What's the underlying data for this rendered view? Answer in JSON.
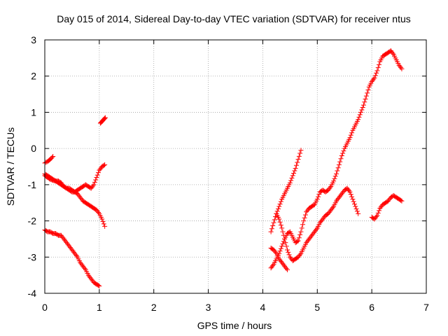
{
  "chart_data": {
    "type": "scatter",
    "title": "Day 015 of 2014, Sidereal Day-to-day VTEC variation (SDTVAR) for receiver ntus",
    "xlabel": "GPS time / hours",
    "ylabel": "SDTVAR / TECUs",
    "xlim": [
      0,
      7
    ],
    "ylim": [
      -4,
      3
    ],
    "xticks": [
      0,
      1,
      2,
      3,
      4,
      5,
      6,
      7
    ],
    "yticks": [
      -4,
      -3,
      -2,
      -1,
      0,
      1,
      2,
      3
    ],
    "xtick_labels": [
      "0",
      "1",
      "2",
      "3",
      "4",
      "5",
      "6",
      "7"
    ],
    "ytick_labels": [
      "-4",
      "-3",
      "-2",
      "-1",
      "0",
      "1",
      "2",
      "3"
    ],
    "grid": true,
    "marker": "+",
    "color": "#ff0000",
    "series": [
      {
        "name": "arc-1",
        "points": [
          [
            0.0,
            -0.4
          ],
          [
            0.06,
            -0.35
          ],
          [
            0.1,
            -0.3
          ],
          [
            0.15,
            -0.22
          ]
        ]
      },
      {
        "name": "arc-2",
        "points": [
          [
            0.0,
            -0.75
          ],
          [
            0.05,
            -0.8
          ],
          [
            0.1,
            -0.85
          ],
          [
            0.15,
            -0.88
          ],
          [
            0.2,
            -0.9
          ],
          [
            0.25,
            -0.95
          ],
          [
            0.3,
            -1.0
          ],
          [
            0.35,
            -1.05
          ],
          [
            0.4,
            -1.1
          ],
          [
            0.45,
            -1.15
          ],
          [
            0.5,
            -1.2
          ],
          [
            0.55,
            -1.2
          ],
          [
            0.6,
            -1.15
          ],
          [
            0.65,
            -1.1
          ],
          [
            0.7,
            -1.05
          ],
          [
            0.75,
            -1.0
          ],
          [
            0.8,
            -1.05
          ],
          [
            0.85,
            -1.1
          ],
          [
            0.9,
            -1.0
          ],
          [
            0.95,
            -0.8
          ],
          [
            1.0,
            -0.6
          ],
          [
            1.05,
            -0.5
          ],
          [
            1.1,
            -0.45
          ]
        ]
      },
      {
        "name": "arc-3",
        "points": [
          [
            0.0,
            -0.7
          ],
          [
            0.05,
            -0.75
          ],
          [
            0.1,
            -0.8
          ],
          [
            0.15,
            -0.85
          ],
          [
            0.2,
            -0.9
          ],
          [
            0.25,
            -0.9
          ],
          [
            0.3,
            -0.95
          ],
          [
            0.35,
            -1.05
          ],
          [
            0.4,
            -1.1
          ],
          [
            0.45,
            -1.1
          ],
          [
            0.5,
            -1.15
          ],
          [
            0.55,
            -1.2
          ],
          [
            0.6,
            -1.25
          ],
          [
            0.65,
            -1.35
          ],
          [
            0.7,
            -1.45
          ],
          [
            0.75,
            -1.5
          ],
          [
            0.8,
            -1.55
          ],
          [
            0.85,
            -1.6
          ],
          [
            0.9,
            -1.65
          ],
          [
            0.95,
            -1.7
          ],
          [
            1.0,
            -1.8
          ],
          [
            1.05,
            -1.95
          ],
          [
            1.1,
            -2.15
          ]
        ]
      },
      {
        "name": "arc-4",
        "points": [
          [
            1.02,
            0.7
          ],
          [
            1.05,
            0.75
          ],
          [
            1.08,
            0.8
          ],
          [
            1.11,
            0.85
          ]
        ]
      },
      {
        "name": "arc-5",
        "points": [
          [
            0.0,
            -2.25
          ],
          [
            0.05,
            -2.3
          ],
          [
            0.1,
            -2.3
          ],
          [
            0.15,
            -2.35
          ],
          [
            0.2,
            -2.35
          ],
          [
            0.25,
            -2.4
          ],
          [
            0.3,
            -2.4
          ],
          [
            0.35,
            -2.5
          ],
          [
            0.4,
            -2.6
          ],
          [
            0.45,
            -2.7
          ],
          [
            0.5,
            -2.8
          ],
          [
            0.55,
            -2.9
          ],
          [
            0.6,
            -3.0
          ],
          [
            0.65,
            -3.15
          ],
          [
            0.7,
            -3.25
          ],
          [
            0.75,
            -3.35
          ],
          [
            0.8,
            -3.5
          ],
          [
            0.85,
            -3.6
          ],
          [
            0.9,
            -3.7
          ],
          [
            0.95,
            -3.75
          ],
          [
            1.0,
            -3.8
          ]
        ]
      },
      {
        "name": "arc-6",
        "points": [
          [
            4.15,
            -2.3
          ],
          [
            4.2,
            -2.05
          ],
          [
            4.25,
            -1.8
          ],
          [
            4.3,
            -1.6
          ],
          [
            4.35,
            -1.4
          ],
          [
            4.4,
            -1.25
          ],
          [
            4.45,
            -1.1
          ],
          [
            4.5,
            -0.95
          ],
          [
            4.55,
            -0.75
          ],
          [
            4.6,
            -0.55
          ],
          [
            4.65,
            -0.3
          ],
          [
            4.7,
            -0.05
          ]
        ]
      },
      {
        "name": "arc-7",
        "points": [
          [
            4.15,
            -2.75
          ],
          [
            4.2,
            -2.8
          ],
          [
            4.25,
            -2.9
          ],
          [
            4.3,
            -3.05
          ],
          [
            4.35,
            -3.15
          ],
          [
            4.4,
            -3.25
          ],
          [
            4.45,
            -3.35
          ]
        ]
      },
      {
        "name": "arc-8",
        "points": [
          [
            4.15,
            -3.3
          ],
          [
            4.2,
            -3.2
          ],
          [
            4.25,
            -3.05
          ],
          [
            4.3,
            -2.9
          ],
          [
            4.35,
            -2.7
          ],
          [
            4.4,
            -2.5
          ],
          [
            4.45,
            -2.35
          ],
          [
            4.5,
            -2.3
          ],
          [
            4.55,
            -2.45
          ],
          [
            4.6,
            -2.6
          ],
          [
            4.65,
            -2.55
          ],
          [
            4.7,
            -2.3
          ],
          [
            4.75,
            -2.0
          ],
          [
            4.8,
            -1.75
          ],
          [
            4.85,
            -1.65
          ],
          [
            4.9,
            -1.6
          ],
          [
            4.95,
            -1.55
          ],
          [
            5.0,
            -1.4
          ],
          [
            5.05,
            -1.2
          ],
          [
            5.1,
            -1.15
          ],
          [
            5.15,
            -1.2
          ],
          [
            5.2,
            -1.15
          ],
          [
            5.25,
            -1.05
          ],
          [
            5.3,
            -0.9
          ],
          [
            5.35,
            -0.7
          ],
          [
            5.4,
            -0.45
          ],
          [
            5.45,
            -0.2
          ],
          [
            5.5,
            0.0
          ],
          [
            5.55,
            0.15
          ],
          [
            5.6,
            0.3
          ],
          [
            5.65,
            0.5
          ],
          [
            5.7,
            0.65
          ],
          [
            5.75,
            0.8
          ],
          [
            5.8,
            1.0
          ],
          [
            5.85,
            1.2
          ],
          [
            5.9,
            1.45
          ],
          [
            5.95,
            1.7
          ],
          [
            6.0,
            1.85
          ],
          [
            6.05,
            1.95
          ],
          [
            6.1,
            2.15
          ],
          [
            6.15,
            2.4
          ],
          [
            6.2,
            2.55
          ],
          [
            6.25,
            2.6
          ],
          [
            6.3,
            2.65
          ],
          [
            6.35,
            2.7
          ],
          [
            6.4,
            2.6
          ],
          [
            6.45,
            2.45
          ],
          [
            6.5,
            2.3
          ],
          [
            6.55,
            2.2
          ]
        ]
      },
      {
        "name": "arc-9",
        "points": [
          [
            4.25,
            -1.8
          ],
          [
            4.3,
            -1.95
          ],
          [
            4.35,
            -2.2
          ],
          [
            4.4,
            -2.5
          ],
          [
            4.45,
            -2.8
          ],
          [
            4.5,
            -3.0
          ],
          [
            4.55,
            -3.1
          ],
          [
            4.6,
            -3.05
          ],
          [
            4.65,
            -3.0
          ],
          [
            4.7,
            -2.9
          ],
          [
            4.75,
            -2.75
          ],
          [
            4.8,
            -2.6
          ],
          [
            4.85,
            -2.5
          ],
          [
            4.9,
            -2.4
          ],
          [
            4.95,
            -2.3
          ],
          [
            5.0,
            -2.2
          ],
          [
            5.05,
            -2.05
          ],
          [
            5.1,
            -1.95
          ],
          [
            5.15,
            -1.85
          ],
          [
            5.2,
            -1.8
          ],
          [
            5.25,
            -1.7
          ],
          [
            5.3,
            -1.6
          ],
          [
            5.35,
            -1.45
          ],
          [
            5.4,
            -1.35
          ],
          [
            5.45,
            -1.25
          ],
          [
            5.5,
            -1.15
          ],
          [
            5.55,
            -1.1
          ],
          [
            5.6,
            -1.2
          ],
          [
            5.65,
            -1.4
          ],
          [
            5.7,
            -1.6
          ],
          [
            5.75,
            -1.8
          ]
        ]
      },
      {
        "name": "arc-10",
        "points": [
          [
            6.0,
            -1.9
          ],
          [
            6.05,
            -1.95
          ],
          [
            6.1,
            -1.85
          ],
          [
            6.15,
            -1.65
          ],
          [
            6.2,
            -1.55
          ],
          [
            6.25,
            -1.5
          ],
          [
            6.3,
            -1.45
          ],
          [
            6.35,
            -1.35
          ],
          [
            6.4,
            -1.3
          ],
          [
            6.45,
            -1.35
          ],
          [
            6.5,
            -1.4
          ],
          [
            6.55,
            -1.45
          ]
        ]
      }
    ]
  }
}
